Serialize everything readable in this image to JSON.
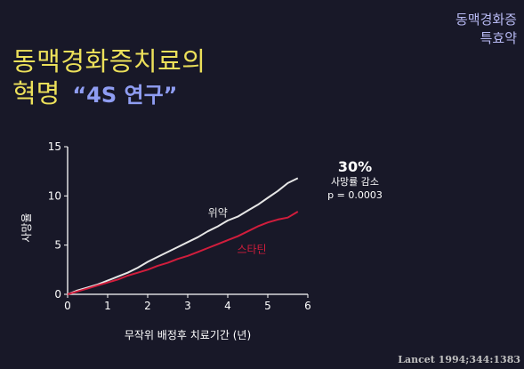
{
  "corner_tag": [
    "동맥경화증",
    "특효약"
  ],
  "title_line1": "동맥경화증치료의",
  "title_line2": "혁명",
  "title_quote": "“4S 연구”",
  "stat": {
    "percent": "30%",
    "line1": "사망률 감소",
    "line2": "p = 0.0003"
  },
  "citation": "Lancet 1994;344:1383",
  "colors": {
    "placebo": "#e6e6e6",
    "statin": "#d11d3c",
    "title": "#ece05a",
    "accent": "#8f9df2"
  },
  "chart_data": {
    "type": "line",
    "title": "",
    "xlabel": "무작위 배정후 치료기간 (년)",
    "ylabel": "사망율",
    "xlim": [
      0,
      6
    ],
    "ylim": [
      0,
      15
    ],
    "xticks": [
      0,
      1,
      2,
      3,
      4,
      5,
      6
    ],
    "yticks": [
      0,
      5,
      10,
      15
    ],
    "grid": false,
    "series": [
      {
        "name": "위약",
        "x": [
          0,
          0.25,
          0.5,
          0.75,
          1,
          1.25,
          1.5,
          1.75,
          2,
          2.25,
          2.5,
          2.75,
          3,
          3.25,
          3.5,
          3.75,
          4,
          4.25,
          4.5,
          4.75,
          5,
          5.25,
          5.5,
          5.75
        ],
        "y": [
          0,
          0.4,
          0.7,
          1.0,
          1.4,
          1.8,
          2.2,
          2.7,
          3.3,
          3.8,
          4.3,
          4.8,
          5.3,
          5.8,
          6.4,
          6.9,
          7.5,
          7.9,
          8.5,
          9.1,
          9.8,
          10.5,
          11.3,
          11.8
        ]
      },
      {
        "name": "스타틴",
        "x": [
          0,
          0.25,
          0.5,
          0.75,
          1,
          1.25,
          1.5,
          1.75,
          2,
          2.25,
          2.5,
          2.75,
          3,
          3.25,
          3.5,
          3.75,
          4,
          4.25,
          4.5,
          4.75,
          5,
          5.25,
          5.5,
          5.75
        ],
        "y": [
          0,
          0.3,
          0.6,
          0.9,
          1.2,
          1.5,
          1.9,
          2.2,
          2.5,
          2.9,
          3.2,
          3.6,
          3.9,
          4.3,
          4.7,
          5.1,
          5.5,
          5.9,
          6.4,
          6.9,
          7.3,
          7.6,
          7.8,
          8.4
        ]
      }
    ]
  }
}
